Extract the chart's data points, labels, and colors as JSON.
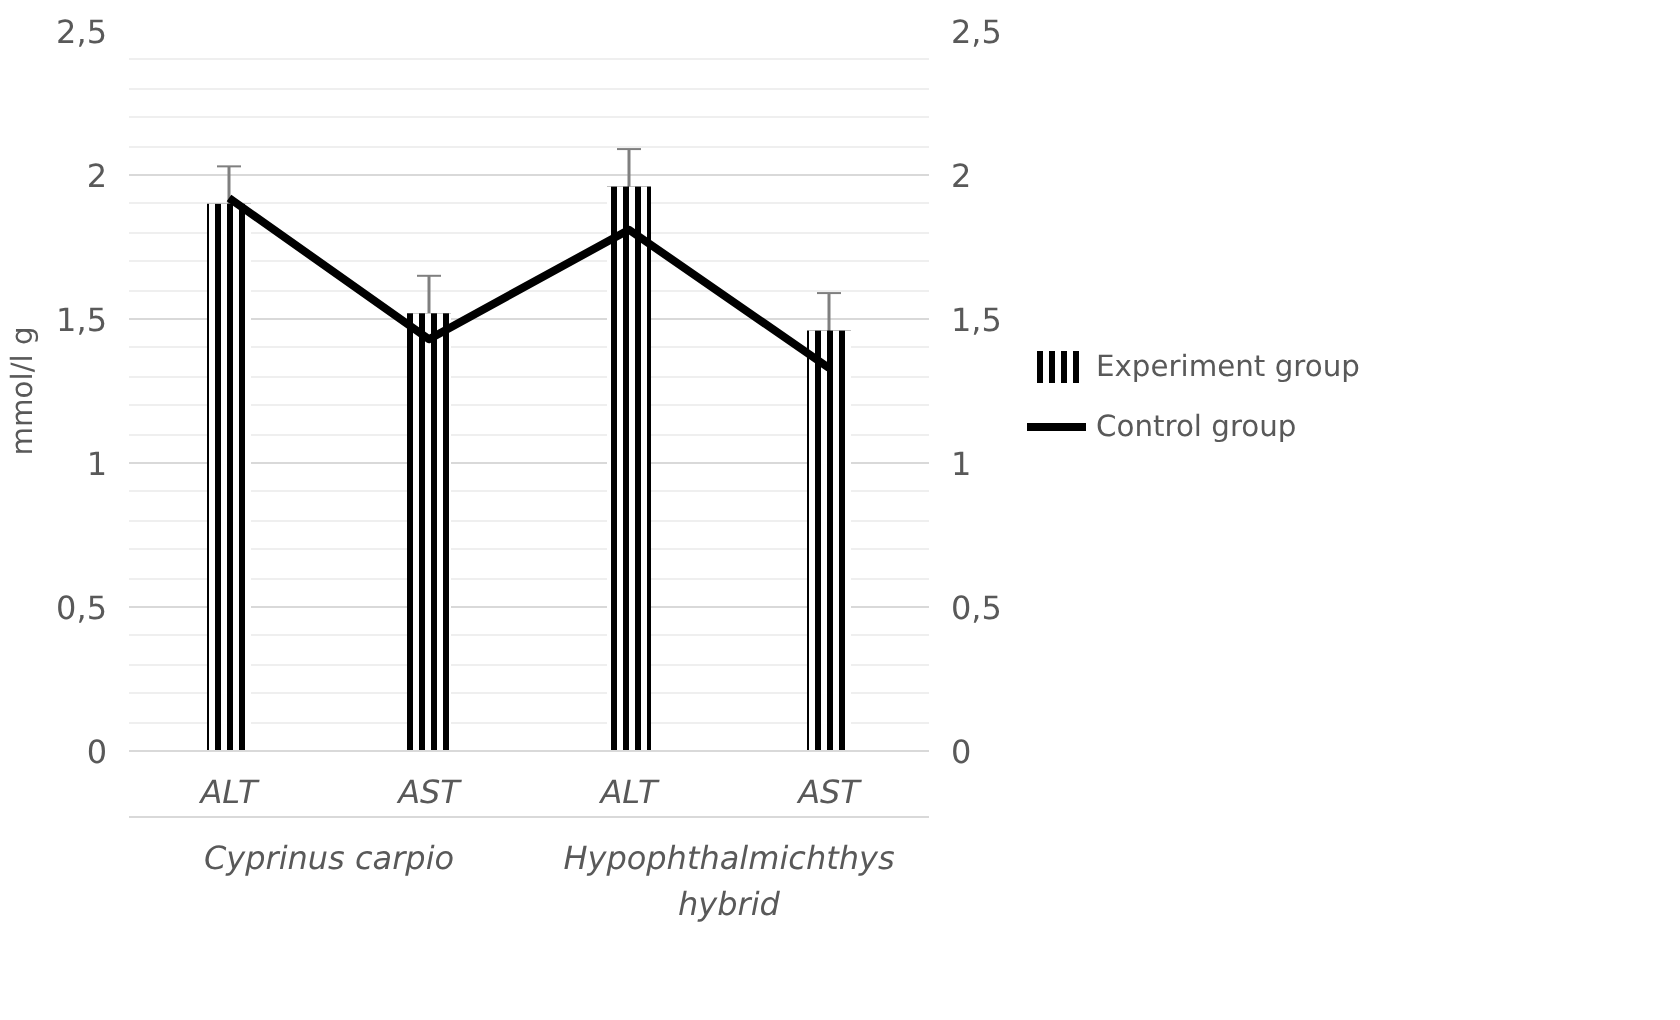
{
  "chart_data": {
    "type": "bar",
    "ylabel": "mmol/l g",
    "categories": [
      "ALT",
      "AST",
      "ALT",
      "AST"
    ],
    "annotations": [
      "Cyprinus carpio",
      "Hypophthalmichthys hybrid"
    ],
    "series": [
      {
        "name": "Experiment group",
        "color": "#000000",
        "values": [
          1.9,
          1.52,
          1.96,
          1.46
        ],
        "errors": [
          0.13,
          0.13,
          0.13,
          0.13
        ]
      },
      {
        "name": "Control group",
        "type": "line",
        "color": "#000000",
        "values": [
          1.92,
          1.43,
          1.81,
          1.33
        ]
      }
    ],
    "ylim": [
      0,
      2.5
    ],
    "yticks": [
      {
        "value": 0,
        "label": "0"
      },
      {
        "value": 0.5,
        "label": "0,5"
      },
      {
        "value": 1,
        "label": "1"
      },
      {
        "value": 1.5,
        "label": "1,5"
      },
      {
        "value": 2,
        "label": "2"
      },
      {
        "value": 2.5,
        "label": "2,5"
      }
    ],
    "y2lim": [
      0,
      2.5
    ],
    "y2ticks": [
      {
        "value": 0,
        "label": "0"
      },
      {
        "value": 0.5,
        "label": "0,5"
      },
      {
        "value": 1,
        "label": "1"
      },
      {
        "value": 1.5,
        "label": "1,5"
      },
      {
        "value": 2,
        "label": "2"
      },
      {
        "value": 2.5,
        "label": "2,5"
      }
    ],
    "grid": "y",
    "legend": "right"
  }
}
